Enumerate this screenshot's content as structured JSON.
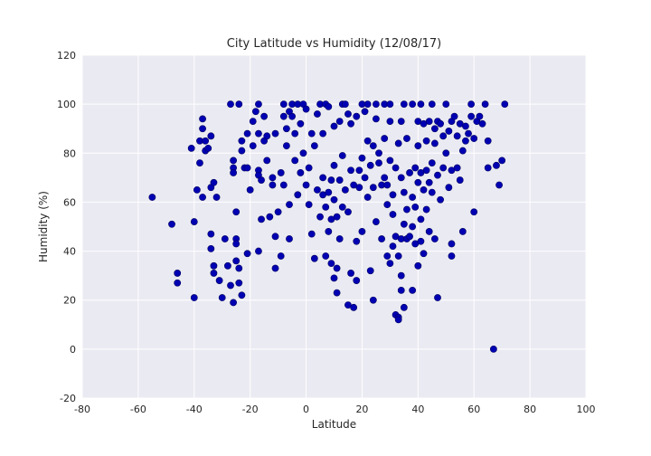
{
  "chart_data": {
    "type": "scatter",
    "title": "City Latitude vs Humidity (12/08/17)",
    "x_label": "Latitude",
    "y_label": "Humidity (%)",
    "xlim": [
      -80,
      100
    ],
    "ylim": [
      -20,
      120
    ],
    "xticks": [
      -80,
      -60,
      -40,
      -20,
      0,
      20,
      40,
      60,
      80,
      100
    ],
    "yticks": [
      -20,
      0,
      20,
      40,
      60,
      80,
      100,
      120
    ],
    "grid": true,
    "color": "#0000b3",
    "x": [
      -55,
      -48,
      -46,
      -46,
      -41,
      -40,
      -40,
      -39,
      -38,
      -38,
      -37,
      -37,
      -37,
      -36,
      -36,
      -35,
      -34,
      -34,
      -34,
      -34,
      -33,
      -33,
      -33,
      -32,
      -31,
      -30,
      -29,
      -28,
      -27,
      -27,
      -26,
      -26,
      -26,
      -26,
      -25,
      -25,
      -25,
      -25,
      -24,
      -24,
      -24,
      -23,
      -23,
      -23,
      -22,
      -21,
      -21,
      -21,
      -20,
      -19,
      -19,
      -18,
      -17,
      -17,
      -17,
      -17,
      -17,
      -16,
      -16,
      -15,
      -15,
      -14,
      -14,
      -13,
      -12,
      -12,
      -11,
      -11,
      -11,
      -10,
      -9,
      -9,
      -8,
      -8,
      -8,
      -7,
      -7,
      -6,
      -6,
      -6,
      -5,
      -5,
      -4,
      -4,
      -3,
      -3,
      -2,
      -2,
      -1,
      -1,
      0,
      0,
      1,
      1,
      2,
      2,
      3,
      3,
      4,
      4,
      5,
      5,
      6,
      6,
      6,
      7,
      7,
      7,
      8,
      8,
      8,
      9,
      9,
      9,
      10,
      10,
      10,
      10,
      11,
      11,
      11,
      12,
      12,
      12,
      13,
      13,
      13,
      14,
      14,
      15,
      15,
      15,
      16,
      16,
      16,
      17,
      17,
      18,
      18,
      18,
      19,
      19,
      20,
      20,
      20,
      21,
      21,
      22,
      22,
      22,
      23,
      23,
      24,
      24,
      24,
      25,
      25,
      25,
      26,
      26,
      27,
      27,
      28,
      28,
      28,
      29,
      29,
      29,
      30,
      30,
      30,
      30,
      31,
      31,
      31,
      32,
      32,
      32,
      33,
      33,
      33,
      33,
      34,
      34,
      34,
      34,
      34,
      35,
      35,
      35,
      35,
      36,
      36,
      36,
      37,
      37,
      38,
      38,
      38,
      38,
      39,
      39,
      39,
      40,
      40,
      40,
      40,
      41,
      41,
      41,
      41,
      42,
      42,
      42,
      43,
      43,
      43,
      44,
      44,
      44,
      45,
      45,
      45,
      46,
      46,
      46,
      47,
      47,
      47,
      48,
      48,
      49,
      49,
      50,
      50,
      51,
      51,
      52,
      52,
      52,
      52,
      53,
      54,
      54,
      55,
      55,
      56,
      56,
      57,
      57,
      58,
      59,
      59,
      60,
      60,
      61,
      62,
      63,
      64,
      65,
      65,
      67,
      68,
      69,
      70,
      71
    ],
    "values": [
      62,
      51,
      31,
      27,
      82,
      21,
      52,
      65,
      85,
      76,
      90,
      94,
      62,
      81,
      85,
      82,
      87,
      47,
      41,
      66,
      68,
      34,
      31,
      62,
      28,
      21,
      45,
      34,
      100,
      26,
      19,
      74,
      77,
      72,
      56,
      45,
      43,
      36,
      100,
      33,
      27,
      81,
      85,
      22,
      74,
      88,
      74,
      39,
      65,
      83,
      93,
      97,
      100,
      88,
      73,
      71,
      40,
      53,
      69,
      95,
      85,
      87,
      77,
      54,
      70,
      67,
      88,
      46,
      33,
      56,
      72,
      38,
      100,
      95,
      67,
      90,
      83,
      97,
      59,
      45,
      100,
      95,
      88,
      77,
      100,
      63,
      92,
      72,
      100,
      80,
      67,
      98,
      74,
      59,
      88,
      47,
      83,
      37,
      96,
      65,
      100,
      54,
      88,
      70,
      63,
      100,
      58,
      38,
      99,
      64,
      48,
      69,
      53,
      35,
      91,
      75,
      61,
      29,
      54,
      33,
      23,
      93,
      69,
      45,
      100,
      79,
      58,
      100,
      65,
      96,
      56,
      18,
      92,
      73,
      31,
      17,
      67,
      95,
      44,
      28,
      73,
      66,
      100,
      78,
      48,
      70,
      97,
      100,
      85,
      62,
      75,
      32,
      83,
      66,
      20,
      100,
      94,
      52,
      76,
      80,
      67,
      45,
      70,
      86,
      100,
      59,
      67,
      38,
      93,
      77,
      35,
      100,
      55,
      63,
      42,
      74,
      46,
      14,
      84,
      38,
      13,
      12,
      93,
      70,
      45,
      30,
      24,
      100,
      64,
      51,
      17,
      86,
      45,
      57,
      72,
      46,
      100,
      62,
      50,
      24,
      74,
      43,
      58,
      93,
      83,
      68,
      34,
      100,
      72,
      53,
      44,
      92,
      65,
      39,
      85,
      73,
      57,
      93,
      68,
      48,
      100,
      76,
      64,
      90,
      84,
      45,
      93,
      71,
      21,
      92,
      61,
      87,
      74,
      100,
      80,
      89,
      66,
      93,
      73,
      43,
      38,
      95,
      87,
      74,
      92,
      69,
      48,
      81,
      85,
      91,
      88,
      95,
      100,
      56,
      86,
      93,
      95,
      92,
      100,
      85,
      74,
      0,
      75,
      67,
      77,
      100
    ]
  }
}
